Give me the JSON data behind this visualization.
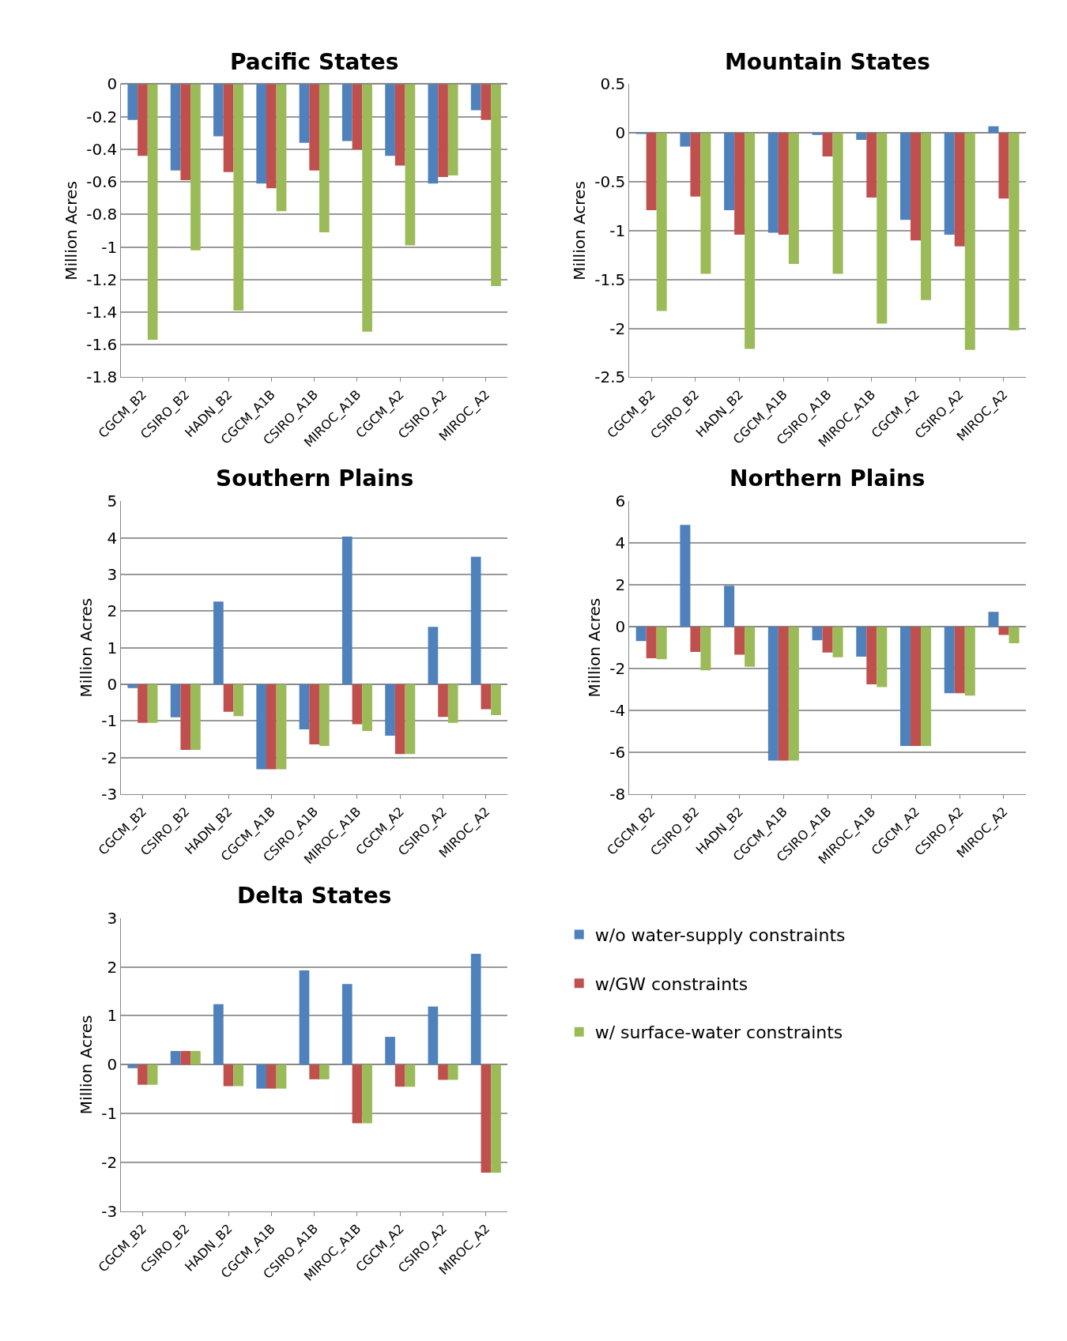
{
  "chart_data": [
    {
      "type": "bar",
      "title": "Pacific States",
      "ylabel": "Million Acres",
      "categories": [
        "CGCM_B2",
        "CSIRO_B2",
        "HADN_B2",
        "CGCM_A1B",
        "CSIRO_A1B",
        "MIROC_A1B",
        "CGCM_A2",
        "CSIRO_A2",
        "MIROC_A2"
      ],
      "ylim": [
        -1.8,
        0
      ],
      "yticks": [
        -1.8,
        -1.6,
        -1.4,
        -1.2,
        -1,
        -0.8,
        -0.6,
        -0.4,
        -0.2,
        0
      ],
      "grid": "y",
      "series": [
        {
          "color": "#4f81bd",
          "values": [
            -0.22,
            -0.53,
            -0.32,
            -0.61,
            -0.36,
            -0.35,
            -0.44,
            -0.61,
            -0.16
          ]
        },
        {
          "color": "#c0504d",
          "values": [
            -0.44,
            -0.59,
            -0.54,
            -0.64,
            -0.53,
            -0.4,
            -0.5,
            -0.57,
            -0.22
          ]
        },
        {
          "color": "#9bbb59",
          "values": [
            -1.57,
            -1.02,
            -1.39,
            -0.78,
            -0.91,
            -1.52,
            -0.99,
            -0.56,
            -1.24
          ]
        }
      ]
    },
    {
      "type": "bar",
      "title": "Mountain States",
      "ylabel": "Million Acres",
      "categories": [
        "CGCM_B2",
        "CSIRO_B2",
        "HADN_B2",
        "CGCM_A1B",
        "CSIRO_A1B",
        "MIROC_A1B",
        "CGCM_A2",
        "CSIRO_A2",
        "MIROC_A2"
      ],
      "ylim": [
        -2.5,
        0.5
      ],
      "yticks": [
        -2.5,
        -2,
        -1.5,
        -1,
        -0.5,
        0,
        0.5
      ],
      "grid": "y",
      "series": [
        {
          "color": "#4f81bd",
          "values": [
            -0.01,
            -0.14,
            -0.79,
            -1.02,
            -0.02,
            -0.07,
            -0.89,
            -1.04,
            0.07
          ]
        },
        {
          "color": "#c0504d",
          "values": [
            -0.79,
            -0.65,
            -1.04,
            -1.04,
            -0.24,
            -0.66,
            -1.1,
            -1.16,
            -0.67
          ]
        },
        {
          "color": "#9bbb59",
          "values": [
            -1.82,
            -1.44,
            -2.21,
            -1.34,
            -1.44,
            -1.95,
            -1.71,
            -2.22,
            -2.02
          ]
        }
      ]
    },
    {
      "type": "bar",
      "title": "Southern Plains",
      "ylabel": "Million Acres",
      "categories": [
        "CGCM_B2",
        "CSIRO_B2",
        "HADN_B2",
        "CGCM_A1B",
        "CSIRO_A1B",
        "MIROC_A1B",
        "CGCM_A2",
        "CSIRO_A2",
        "MIROC_A2"
      ],
      "ylim": [
        -3,
        5
      ],
      "yticks": [
        -3,
        -2,
        -1,
        0,
        1,
        2,
        3,
        4,
        5
      ],
      "grid": "y",
      "series": [
        {
          "color": "#4f81bd",
          "values": [
            -0.1,
            -0.9,
            2.26,
            -2.32,
            -1.23,
            4.03,
            -1.4,
            1.57,
            3.48
          ]
        },
        {
          "color": "#c0504d",
          "values": [
            -1.05,
            -1.79,
            -0.75,
            -2.32,
            -1.64,
            -1.09,
            -1.9,
            -0.89,
            -0.68
          ]
        },
        {
          "color": "#9bbb59",
          "values": [
            -1.05,
            -1.79,
            -0.87,
            -2.32,
            -1.68,
            -1.27,
            -1.9,
            -1.05,
            -0.84
          ]
        }
      ]
    },
    {
      "type": "bar",
      "title": "Northern Plains",
      "ylabel": "Million Acres",
      "categories": [
        "CGCM_B2",
        "CSIRO_B2",
        "HADN_B2",
        "CGCM_A1B",
        "CSIRO_A1B",
        "MIROC_A1B",
        "CGCM_A2",
        "CSIRO_A2",
        "MIROC_A2"
      ],
      "ylim": [
        -8,
        6
      ],
      "yticks": [
        -8,
        -6,
        -4,
        -2,
        0,
        2,
        4,
        6
      ],
      "grid": "y",
      "series": [
        {
          "color": "#4f81bd",
          "values": [
            -0.68,
            4.86,
            1.96,
            -6.39,
            -0.65,
            -1.43,
            -5.69,
            -3.17,
            0.71
          ]
        },
        {
          "color": "#c0504d",
          "values": [
            -1.5,
            -1.2,
            -1.33,
            -6.39,
            -1.23,
            -2.75,
            -5.69,
            -3.17,
            -0.39
          ]
        },
        {
          "color": "#9bbb59",
          "values": [
            -1.55,
            -2.08,
            -1.91,
            -6.39,
            -1.46,
            -2.88,
            -5.69,
            -3.29,
            -0.79
          ]
        }
      ]
    },
    {
      "type": "bar",
      "title": "Delta States",
      "ylabel": "Million Acres",
      "categories": [
        "CGCM_B2",
        "CSIRO_B2",
        "HADN_B2",
        "CGCM_A1B",
        "CSIRO_A1B",
        "MIROC_A1B",
        "CGCM_A2",
        "CSIRO_A2",
        "MIROC_A2"
      ],
      "ylim": [
        -3,
        3
      ],
      "yticks": [
        -3,
        -2,
        -1,
        0,
        1,
        2,
        3
      ],
      "grid": "y",
      "legend": "right",
      "series": [
        {
          "name": "w/o water-supply constraints",
          "color": "#4f81bd",
          "values": [
            -0.07,
            0.28,
            1.24,
            -0.49,
            1.93,
            1.65,
            0.57,
            1.19,
            2.27
          ]
        },
        {
          "name": "w/GW constraints",
          "color": "#c0504d",
          "values": [
            -0.41,
            0.28,
            -0.44,
            -0.49,
            -0.3,
            -1.2,
            -0.45,
            -0.31,
            -2.21
          ]
        },
        {
          "name": "w/ surface-water constraints",
          "color": "#9bbb59",
          "values": [
            -0.41,
            0.28,
            -0.44,
            -0.49,
            -0.3,
            -1.2,
            -0.45,
            -0.31,
            -2.21
          ]
        }
      ]
    }
  ]
}
